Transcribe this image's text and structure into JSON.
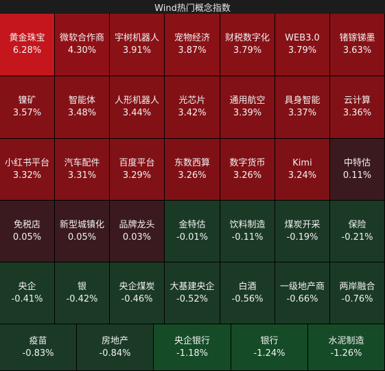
{
  "title": "Wind热门概念指数",
  "rows": [
    [
      {
        "name": "黄金珠宝",
        "change": "6.28%",
        "color": "#c4161c"
      },
      {
        "name": "微软合作商",
        "change": "4.30%",
        "color": "#8f1117"
      },
      {
        "name": "宇树机器人",
        "change": "3.91%",
        "color": "#8a1116"
      },
      {
        "name": "宠物经济",
        "change": "3.87%",
        "color": "#8a1116"
      },
      {
        "name": "财税数字化",
        "change": "3.79%",
        "color": "#881116"
      },
      {
        "name": "WEB3.0",
        "change": "3.79%",
        "color": "#881116"
      },
      {
        "name": "锗镓锑墨",
        "change": "3.63%",
        "color": "#851116"
      }
    ],
    [
      {
        "name": "镍矿",
        "change": "3.57%",
        "color": "#841116"
      },
      {
        "name": "智能体",
        "change": "3.48%",
        "color": "#831116"
      },
      {
        "name": "人形机器人",
        "change": "3.44%",
        "color": "#821116"
      },
      {
        "name": "光芯片",
        "change": "3.42%",
        "color": "#821116"
      },
      {
        "name": "通用航空",
        "change": "3.39%",
        "color": "#811116"
      },
      {
        "name": "具身智能",
        "change": "3.37%",
        "color": "#811116"
      },
      {
        "name": "云计算",
        "change": "3.36%",
        "color": "#811116"
      }
    ],
    [
      {
        "name": "小红书平台",
        "change": "3.32%",
        "color": "#801116"
      },
      {
        "name": "汽车配件",
        "change": "3.31%",
        "color": "#801116"
      },
      {
        "name": "百度平台",
        "change": "3.29%",
        "color": "#801116"
      },
      {
        "name": "东数西算",
        "change": "3.26%",
        "color": "#7f1116"
      },
      {
        "name": "数字货币",
        "change": "3.26%",
        "color": "#7f1116"
      },
      {
        "name": "Kimi",
        "change": "3.24%",
        "color": "#7e1116"
      },
      {
        "name": "中特估",
        "change": "0.11%",
        "color": "#3a1a1e"
      }
    ],
    [
      {
        "name": "免税店",
        "change": "0.05%",
        "color": "#3a1a1e"
      },
      {
        "name": "新型城镇化",
        "change": "0.05%",
        "color": "#3a1a1e"
      },
      {
        "name": "品牌龙头",
        "change": "0.03%",
        "color": "#3a1a1e"
      },
      {
        "name": "金特估",
        "change": "-0.01%",
        "color": "#1b3a26"
      },
      {
        "name": "饮料制造",
        "change": "-0.11%",
        "color": "#1b3a26"
      },
      {
        "name": "煤炭开采",
        "change": "-0.19%",
        "color": "#1b3a26"
      },
      {
        "name": "保险",
        "change": "-0.21%",
        "color": "#1b3a26"
      }
    ],
    [
      {
        "name": "央企",
        "change": "-0.41%",
        "color": "#1b3a26"
      },
      {
        "name": "银",
        "change": "-0.42%",
        "color": "#1b3a26"
      },
      {
        "name": "央企煤炭",
        "change": "-0.46%",
        "color": "#1b3a26"
      },
      {
        "name": "大基建央企",
        "change": "-0.52%",
        "color": "#1b3a26"
      },
      {
        "name": "白酒",
        "change": "-0.56%",
        "color": "#1b3a26"
      },
      {
        "name": "一级地产商",
        "change": "-0.66%",
        "color": "#1b3a26"
      },
      {
        "name": "两岸融合",
        "change": "-0.76%",
        "color": "#1b3a26"
      }
    ],
    [
      {
        "name": "疫苗",
        "change": "-0.83%",
        "color": "#1b3a26"
      },
      {
        "name": "房地产",
        "change": "-0.84%",
        "color": "#1b3a26"
      },
      {
        "name": "央企银行",
        "change": "-1.18%",
        "color": "#154b27"
      },
      {
        "name": "银行",
        "change": "-1.24%",
        "color": "#154b27"
      },
      {
        "name": "水泥制造",
        "change": "-1.26%",
        "color": "#154b27"
      }
    ]
  ]
}
